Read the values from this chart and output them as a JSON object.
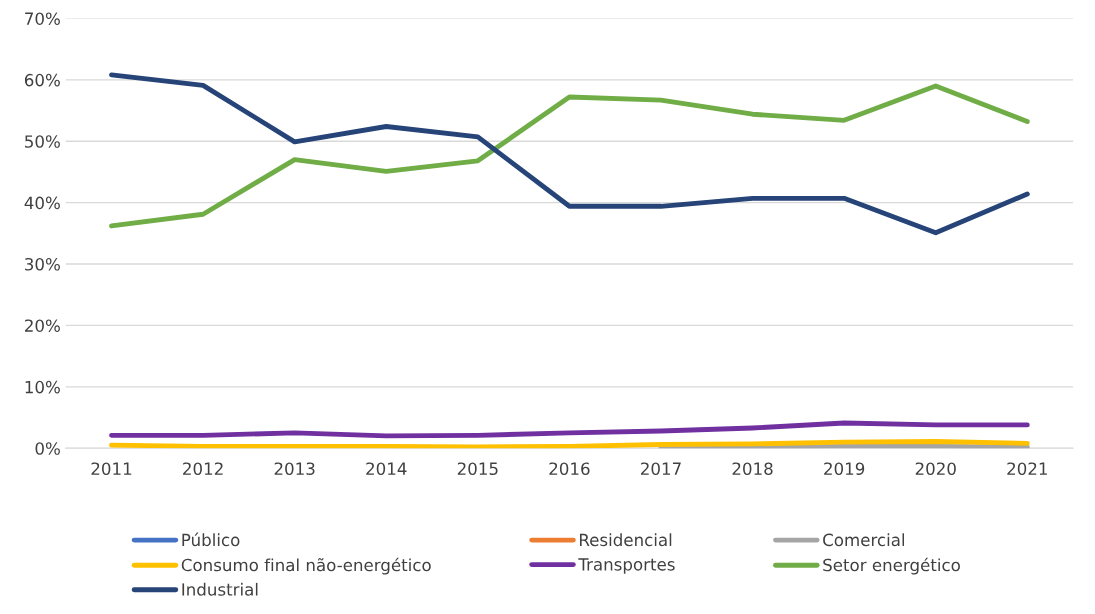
{
  "chart_data": {
    "type": "line",
    "categories": [
      "2011",
      "2012",
      "2013",
      "2014",
      "2015",
      "2016",
      "2017",
      "2018",
      "2019",
      "2020",
      "2021"
    ],
    "series": [
      {
        "name": "Público",
        "color": "#4472c4",
        "values": [
          null,
          null,
          null,
          null,
          null,
          null,
          null,
          null,
          null,
          null,
          null
        ]
      },
      {
        "name": "Residencial",
        "color": "#ed7d31",
        "values": [
          null,
          null,
          null,
          null,
          null,
          null,
          null,
          null,
          null,
          null,
          null
        ]
      },
      {
        "name": "Comercial",
        "color": "#a5a5a5",
        "values": [
          null,
          null,
          null,
          null,
          null,
          null,
          0.1,
          0.2,
          0.3,
          0.3,
          0.2
        ]
      },
      {
        "name": "Consumo final não-energético",
        "color": "#ffc000",
        "values": [
          0.5,
          0.3,
          0.3,
          0.3,
          0.2,
          0.3,
          0.6,
          0.7,
          1.0,
          1.1,
          0.8
        ]
      },
      {
        "name": "Transportes",
        "color": "#7030a0",
        "values": [
          2.1,
          2.1,
          2.5,
          2.0,
          2.1,
          2.5,
          2.8,
          3.3,
          4.1,
          3.8,
          3.8
        ]
      },
      {
        "name": "Setor energético",
        "color": "#70ad47",
        "values": [
          36.2,
          38.1,
          47.0,
          45.1,
          46.8,
          57.2,
          56.7,
          54.4,
          53.4,
          59.0,
          53.2
        ]
      },
      {
        "name": "Industrial",
        "color": "#264478",
        "values": [
          60.8,
          59.1,
          49.9,
          52.4,
          50.7,
          39.4,
          39.4,
          40.7,
          40.7,
          35.1,
          41.4
        ]
      }
    ],
    "ylim": [
      0,
      70
    ],
    "yticks": [
      {
        "value": 0,
        "label": "0%"
      },
      {
        "value": 10,
        "label": "10%"
      },
      {
        "value": 20,
        "label": "20%"
      },
      {
        "value": 30,
        "label": "30%"
      },
      {
        "value": 40,
        "label": "40%"
      },
      {
        "value": 50,
        "label": "50%"
      },
      {
        "value": 60,
        "label": "60%"
      },
      {
        "value": 70,
        "label": "70%"
      }
    ],
    "grid": "y",
    "legend": "bottom",
    "marker": "none",
    "line_style": "solid"
  }
}
